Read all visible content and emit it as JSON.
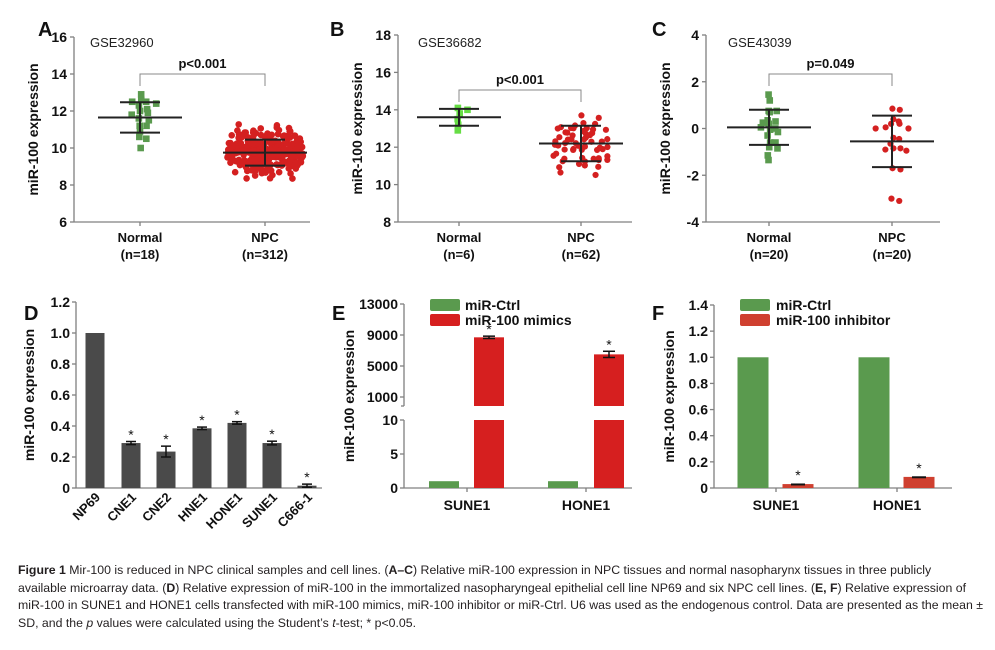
{
  "figure": {
    "caption": {
      "label": "Figure 1",
      "segments": [
        {
          "t": "Mir-100 is reduced in NPC clinical samples and cell lines. (",
          "s": ""
        },
        {
          "t": "A–C",
          "s": "b"
        },
        {
          "t": ") Relative miR-100 expression in NPC tissues and normal nasopharynx tissues in three publicly available microarray data. (",
          "s": ""
        },
        {
          "t": "D",
          "s": "b"
        },
        {
          "t": ") Relative expression of miR-100 in the immortalized nasopharyngeal epithelial cell line NP69 and six NPC cell lines. (",
          "s": ""
        },
        {
          "t": "E, F",
          "s": "b"
        },
        {
          "t": ") Relative expression of miR-100 in SUNE1 and HONE1 cells transfected with miR-100 mimics, miR-100 inhibitor or miR-Ctrl. U6 was used as the endogenous control. Data are presented as the mean ± SD, and the ",
          "s": ""
        },
        {
          "t": "p",
          "s": "i"
        },
        {
          "t": " values were calculated using the Student’s ",
          "s": ""
        },
        {
          "t": "t",
          "s": "i"
        },
        {
          "t": "-test; * p<0.05.",
          "s": ""
        }
      ]
    }
  },
  "colors": {
    "normal_green": "#5a9a4e",
    "normal_light_green": "#66dd44",
    "npc_red": "#d42020",
    "bar_dark": "#4a4a4a",
    "ctrl_green": "#5a9a4e",
    "mimics_red": "#d61f1f",
    "inhibitor_red": "#cf4030",
    "axis": "#808080",
    "text": "#1a1a1a"
  },
  "chart_data": [
    {
      "id": "A",
      "panel_label": "A",
      "type": "scatter",
      "title": "GSE32960",
      "ylabel": "miR-100 expression",
      "ylim": [
        6,
        16
      ],
      "yticks": [
        6,
        8,
        10,
        12,
        14,
        16
      ],
      "categories": [
        "Normal\n(n=18)",
        "NPC\n(n=312)"
      ],
      "groups": [
        {
          "name": "Normal",
          "n": 18,
          "mean": 11.65,
          "sd": 0.82,
          "marker": "square",
          "color": "#5a9a4e",
          "values": [
            12.9,
            12.6,
            12.5,
            12.5,
            12.4,
            12.3,
            12.1,
            12.0,
            11.9,
            11.8,
            11.6,
            11.5,
            11.2,
            11.2,
            10.9,
            10.6,
            10.5,
            10.0
          ]
        },
        {
          "name": "NPC",
          "n": 312,
          "mean": 9.75,
          "sd": 0.7,
          "marker": "circle",
          "color": "#d42020",
          "range": [
            8.2,
            11.6
          ]
        }
      ],
      "significance": "p<0.001"
    },
    {
      "id": "B",
      "panel_label": "B",
      "type": "scatter",
      "title": "GSE36682",
      "ylabel": "miR-100 expression",
      "ylim": [
        8,
        18
      ],
      "yticks": [
        8,
        10,
        12,
        14,
        16,
        18
      ],
      "categories": [
        "Normal\n(n=6)",
        "NPC\n(n=62)"
      ],
      "groups": [
        {
          "name": "Normal",
          "n": 6,
          "mean": 13.6,
          "sd": 0.45,
          "marker": "square",
          "color": "#66dd44",
          "values": [
            14.1,
            14.0,
            13.8,
            13.5,
            13.2,
            12.9
          ]
        },
        {
          "name": "NPC",
          "n": 62,
          "mean": 12.2,
          "sd": 0.95,
          "marker": "circle",
          "color": "#d42020",
          "range": [
            10.2,
            13.7
          ]
        }
      ],
      "significance": "p<0.001"
    },
    {
      "id": "C",
      "panel_label": "C",
      "type": "scatter",
      "title": "GSE43039",
      "ylabel": "miR-100 expression",
      "ylim": [
        -4,
        4
      ],
      "yticks": [
        -4,
        -2,
        0,
        2,
        4
      ],
      "categories": [
        "Normal\n(n=20)",
        "NPC\n(n=20)"
      ],
      "groups": [
        {
          "name": "Normal",
          "n": 20,
          "mean": 0.05,
          "sd": 0.75,
          "marker": "square",
          "color": "#5a9a4e",
          "values": [
            1.45,
            1.2,
            0.75,
            0.7,
            0.75,
            0.35,
            0.3,
            0.25,
            0.2,
            0.0,
            0.05,
            -0.05,
            -0.15,
            -0.3,
            -0.6,
            -0.6,
            -0.8,
            -0.85,
            -1.15,
            -1.35
          ]
        },
        {
          "name": "NPC",
          "n": 20,
          "mean": -0.55,
          "sd": 1.1,
          "marker": "circle",
          "color": "#d42020",
          "values": [
            0.85,
            0.8,
            0.4,
            0.3,
            0.2,
            0.2,
            0.05,
            0.0,
            0.0,
            -0.4,
            -0.45,
            -0.65,
            -0.85,
            -0.85,
            -0.9,
            -0.95,
            -1.7,
            -1.75,
            -3.0,
            -3.1
          ]
        }
      ],
      "significance": "p=0.049"
    },
    {
      "id": "D",
      "panel_label": "D",
      "type": "bar",
      "ylabel": "miR-100 expression",
      "ylim": [
        0,
        1.2
      ],
      "yticks": [
        "0",
        "0.2",
        "0.4",
        "0.6",
        "0.8",
        "1.0",
        "1.2"
      ],
      "categories": [
        "NP69",
        "CNE1",
        "CNE2",
        "HNE1",
        "HONE1",
        "SUNE1",
        "C666-1"
      ],
      "values": [
        1.0,
        0.29,
        0.235,
        0.385,
        0.42,
        0.29,
        0.015
      ],
      "errors": [
        0,
        0.01,
        0.035,
        0.008,
        0.008,
        0.012,
        0.01
      ],
      "significant": [
        false,
        true,
        true,
        true,
        true,
        true,
        true
      ]
    },
    {
      "id": "E",
      "panel_label": "E",
      "type": "bar",
      "ylabel": "miR-100 expression",
      "broken_axis": true,
      "lower_ylim": [
        0,
        10
      ],
      "lower_yticks": [
        "0",
        "5",
        "10"
      ],
      "upper_ylim": [
        1000,
        13000
      ],
      "upper_yticks": [
        "1000",
        "5000",
        "9000",
        "13000"
      ],
      "categories": [
        "SUNE1",
        "HONE1"
      ],
      "series": [
        {
          "name": "miR-Ctrl",
          "color": "#5a9a4e",
          "values": [
            1.0,
            1.0
          ],
          "errors": [
            0,
            0
          ],
          "significant": [
            false,
            false
          ]
        },
        {
          "name": "miR-100 mimics",
          "color": "#d61f1f",
          "values": [
            8700,
            6500
          ],
          "errors": [
            150,
            400
          ],
          "significant": [
            true,
            true
          ]
        }
      ],
      "legend": "top-left"
    },
    {
      "id": "F",
      "panel_label": "F",
      "type": "bar",
      "ylabel": "miR-100 expression",
      "ylim": [
        0,
        1.4
      ],
      "yticks": [
        "0",
        "0.2",
        "0.4",
        "0.6",
        "0.8",
        "1.0",
        "1.2",
        "1.4"
      ],
      "categories": [
        "SUNE1",
        "HONE1"
      ],
      "series": [
        {
          "name": "miR-Ctrl",
          "color": "#5a9a4e",
          "values": [
            1.0,
            1.0
          ],
          "errors": [
            0,
            0
          ],
          "significant": [
            false,
            false
          ]
        },
        {
          "name": "miR-100 inhibitor",
          "color": "#cf4030",
          "values": [
            0.03,
            0.085
          ],
          "errors": [
            0.005,
            0.005
          ],
          "significant": [
            true,
            true
          ]
        }
      ],
      "legend": "top-left"
    }
  ]
}
